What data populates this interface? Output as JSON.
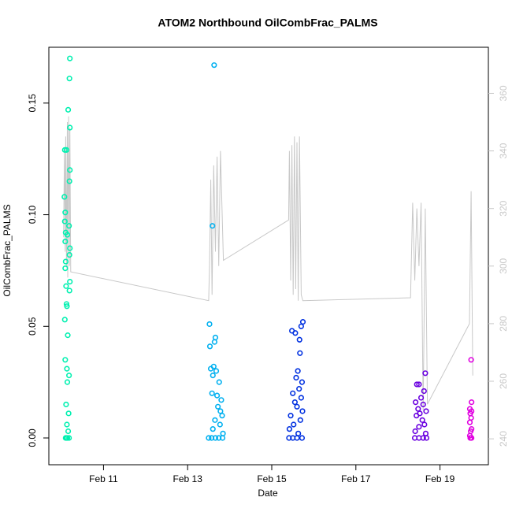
{
  "chart_data": {
    "type": "scatter",
    "title": "ATOM2 Northbound OilCombFrac_PALMS",
    "xlabel": "Date",
    "ylabel": "OilCombFrac_PALMS",
    "xlim": [
      9.7,
      20.15
    ],
    "xticks": [
      {
        "value": 11,
        "label": "Feb 11"
      },
      {
        "value": 13,
        "label": "Feb 13"
      },
      {
        "value": 15,
        "label": "Feb 15"
      },
      {
        "value": 17,
        "label": "Feb 17"
      },
      {
        "value": 19,
        "label": "Feb 19"
      }
    ],
    "ylim": [
      -0.012,
      0.175
    ],
    "yticks": [
      {
        "value": 0,
        "label": "0.00"
      },
      0.05,
      {
        "value": 0.1,
        "label": "0.10"
      },
      0.15
    ],
    "y2lim": [
      231,
      376
    ],
    "y2ticks": [
      240,
      260,
      280,
      300,
      320,
      340,
      360
    ],
    "y2color": "#c8c8c8",
    "series": [
      {
        "type": "line",
        "axis": "y2",
        "color": "#c8c8c8",
        "x": [
          10.05,
          10.07,
          10.09,
          10.1,
          10.12,
          10.14,
          10.15,
          10.17,
          10.19,
          10.2,
          10.22,
          13.5,
          13.52,
          13.55,
          13.58,
          13.62,
          13.66,
          13.7,
          13.74,
          13.78,
          13.85,
          15.4,
          15.42,
          15.45,
          15.48,
          15.51,
          15.54,
          15.57,
          15.6,
          15.63,
          15.66,
          15.7,
          15.74,
          18.3,
          18.35,
          18.4,
          18.45,
          18.5,
          18.55,
          18.6,
          18.65,
          18.7,
          19.7,
          19.74,
          19.78
        ],
        "values": [
          310,
          340,
          305,
          345,
          300,
          350,
          296,
          352,
          300,
          348,
          298,
          288,
          300,
          330,
          290,
          335,
          305,
          338,
          300,
          340,
          302,
          316,
          340,
          295,
          342,
          290,
          345,
          292,
          343,
          288,
          345,
          290,
          288,
          289,
          322,
          295,
          320,
          300,
          322,
          250,
          320,
          252,
          280,
          326,
          262
        ]
      },
      {
        "color": "#00f0b0",
        "x": [
          10.2,
          10.19,
          10.16,
          10.2,
          10.08,
          10.12,
          10.2,
          10.19,
          10.07,
          10.09,
          10.08,
          10.18,
          10.1,
          10.14,
          10.09,
          10.2,
          10.19,
          10.1,
          10.09,
          10.2,
          10.11,
          10.19,
          10.12,
          10.13,
          10.08,
          10.15,
          10.09,
          10.13,
          10.18,
          10.14,
          10.11,
          10.17,
          10.13,
          10.16,
          10.1,
          10.14,
          10.18,
          10.12
        ],
        "values": [
          0.17,
          0.161,
          0.147,
          0.139,
          0.129,
          0.129,
          0.12,
          0.115,
          0.108,
          0.101,
          0.097,
          0.095,
          0.092,
          0.091,
          0.088,
          0.085,
          0.082,
          0.079,
          0.076,
          0.07,
          0.068,
          0.066,
          0.06,
          0.059,
          0.053,
          0.046,
          0.035,
          0.031,
          0.028,
          0.025,
          0.015,
          0.011,
          0.006,
          0.003,
          0,
          0,
          0,
          0
        ]
      },
      {
        "color": "#00b0f0",
        "x": [
          13.63,
          13.59,
          13.52,
          13.66,
          13.64,
          13.53,
          13.62,
          13.55,
          13.68,
          13.6,
          13.75,
          13.58,
          13.7,
          13.8,
          13.72,
          13.78,
          13.82,
          13.65,
          13.77,
          13.6,
          13.84,
          13.5,
          13.57,
          13.66,
          13.74,
          13.83
        ],
        "values": [
          0.167,
          0.095,
          0.051,
          0.045,
          0.043,
          0.041,
          0.032,
          0.031,
          0.03,
          0.028,
          0.025,
          0.02,
          0.019,
          0.017,
          0.014,
          0.012,
          0.01,
          0.008,
          0.006,
          0.004,
          0.002,
          0,
          0,
          0,
          0,
          0
        ]
      },
      {
        "color": "#0030e0",
        "x": [
          15.74,
          15.7,
          15.48,
          15.56,
          15.66,
          15.67,
          15.62,
          15.58,
          15.72,
          15.65,
          15.5,
          15.7,
          15.55,
          15.6,
          15.73,
          15.45,
          15.68,
          15.52,
          15.42,
          15.63,
          15.41,
          15.5,
          15.6,
          15.72
        ],
        "values": [
          0.052,
          0.05,
          0.048,
          0.047,
          0.044,
          0.038,
          0.03,
          0.027,
          0.025,
          0.022,
          0.02,
          0.018,
          0.016,
          0.014,
          0.012,
          0.01,
          0.008,
          0.006,
          0.004,
          0.002,
          0,
          0,
          0,
          0
        ]
      },
      {
        "color": "#6a00e0",
        "x": [
          18.65,
          18.45,
          18.5,
          18.62,
          18.55,
          18.42,
          18.6,
          18.48,
          18.67,
          18.52,
          18.44,
          18.58,
          18.63,
          18.5,
          18.41,
          18.66,
          18.4,
          18.5,
          18.6,
          18.68
        ],
        "values": [
          0.029,
          0.024,
          0.024,
          0.021,
          0.018,
          0.016,
          0.015,
          0.013,
          0.012,
          0.011,
          0.01,
          0.008,
          0.006,
          0.005,
          0.003,
          0.002,
          0,
          0,
          0,
          0
        ]
      },
      {
        "color": "#e000e0",
        "x": [
          19.74,
          19.75,
          19.71,
          19.75,
          19.72,
          19.74,
          19.71,
          19.75,
          19.73,
          19.71,
          19.72,
          19.75
        ],
        "values": [
          0.035,
          0.016,
          0.013,
          0.012,
          0.011,
          0.009,
          0.007,
          0.004,
          0.003,
          0.001,
          0,
          0
        ]
      }
    ]
  }
}
